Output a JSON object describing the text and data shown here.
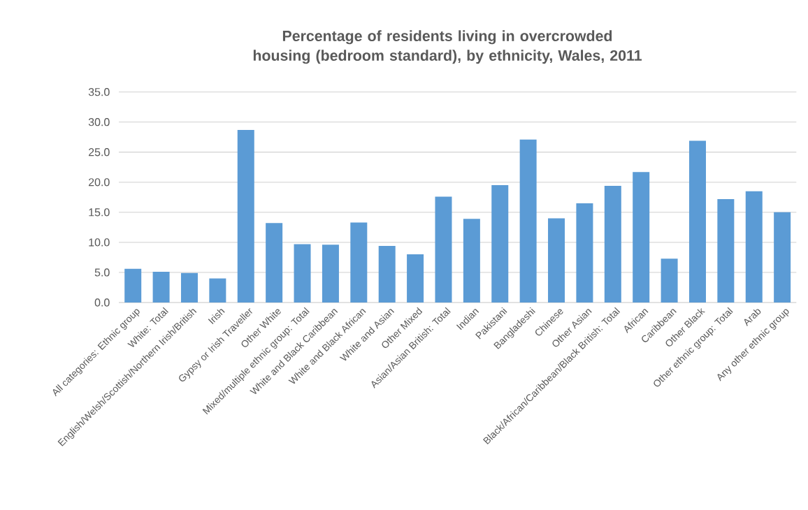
{
  "chart_data": {
    "type": "bar",
    "title": "Percentage of residents living in overcrowded housing (bedroom standard), by ethnicity, Wales, 2011",
    "categories": [
      "All categories: Ethnic group",
      "White: Total",
      "English/Welsh/Scottish/Northern Irish/British",
      "Irish",
      "Gypsy or Irish Traveller",
      "Other White",
      "Mixed/multiple ethnic group: Total",
      "White and Black Caribbean",
      "White and Black African",
      "White and Asian",
      "Other Mixed",
      "Asian/Asian British: Total",
      "Indian",
      "Pakistani",
      "Bangladeshi",
      "Chinese",
      "Other Asian",
      "Black/African/Caribbean/Black British: Total",
      "African",
      "Caribbean",
      "Other Black",
      "Other ethnic group: Total",
      "Arab",
      "Any other ethnic group"
    ],
    "values": [
      5.6,
      5.1,
      4.9,
      4.0,
      28.7,
      13.2,
      9.7,
      9.6,
      13.3,
      9.4,
      8.0,
      17.6,
      13.9,
      19.5,
      27.1,
      14.0,
      16.5,
      19.4,
      21.7,
      7.3,
      26.9,
      17.2,
      18.5,
      15.0
    ],
    "color": "#5b9bd5",
    "ylim": [
      0,
      35
    ],
    "yticks": [
      {
        "value": 0,
        "label": "0.0"
      },
      {
        "value": 5,
        "label": "5.0"
      },
      {
        "value": 10,
        "label": "10.0"
      },
      {
        "value": 15,
        "label": "15.0"
      },
      {
        "value": 20,
        "label": "20.0"
      },
      {
        "value": 25,
        "label": "25.0"
      },
      {
        "value": 30,
        "label": "30.0"
      },
      {
        "value": 35,
        "label": "35.0"
      }
    ],
    "grid": "y"
  }
}
